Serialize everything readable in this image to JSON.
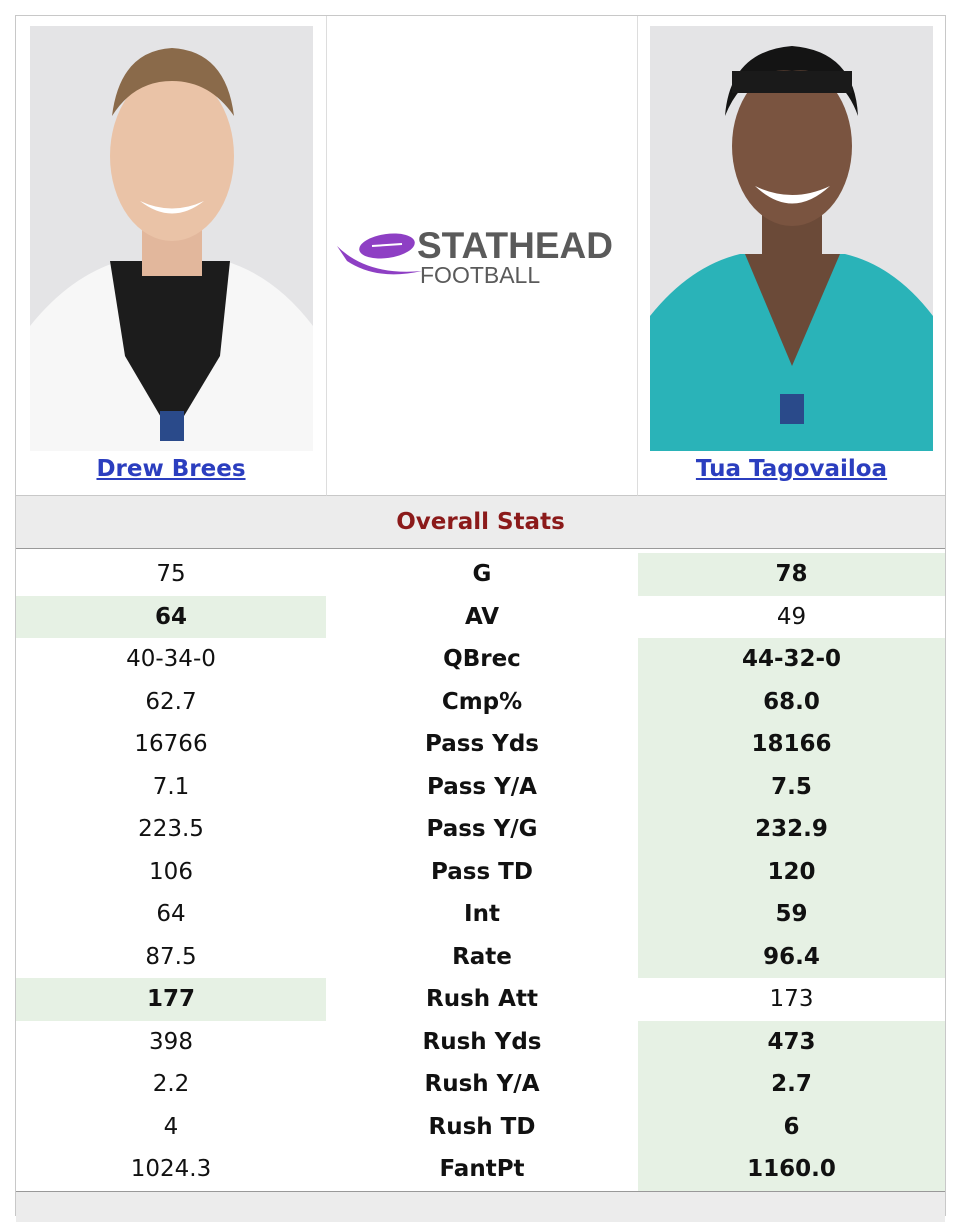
{
  "players": [
    {
      "name": "Drew Brees"
    },
    {
      "name": "Tua Tagovailoa"
    }
  ],
  "logo": {
    "line1": "STATHEAD",
    "line2": "FOOTBALL"
  },
  "section_title": "Overall Stats",
  "stats": [
    {
      "label": "G",
      "left": "75",
      "right": "78",
      "better": "right"
    },
    {
      "label": "AV",
      "left": "64",
      "right": "49",
      "better": "left"
    },
    {
      "label": "QBrec",
      "left": "40-34-0",
      "right": "44-32-0",
      "better": "right"
    },
    {
      "label": "Cmp%",
      "left": "62.7",
      "right": "68.0",
      "better": "right"
    },
    {
      "label": "Pass Yds",
      "left": "16766",
      "right": "18166",
      "better": "right"
    },
    {
      "label": "Pass Y/A",
      "left": "7.1",
      "right": "7.5",
      "better": "right"
    },
    {
      "label": "Pass Y/G",
      "left": "223.5",
      "right": "232.9",
      "better": "right"
    },
    {
      "label": "Pass TD",
      "left": "106",
      "right": "120",
      "better": "right"
    },
    {
      "label": "Int",
      "left": "64",
      "right": "59",
      "better": "right"
    },
    {
      "label": "Rate",
      "left": "87.5",
      "right": "96.4",
      "better": "right"
    },
    {
      "label": "Rush Att",
      "left": "177",
      "right": "173",
      "better": "left"
    },
    {
      "label": "Rush Yds",
      "left": "398",
      "right": "473",
      "better": "right"
    },
    {
      "label": "Rush Y/A",
      "left": "2.2",
      "right": "2.7",
      "better": "right"
    },
    {
      "label": "Rush TD",
      "left": "4",
      "right": "6",
      "better": "right"
    },
    {
      "label": "FantPt",
      "left": "1024.3",
      "right": "1160.0",
      "better": "right"
    }
  ]
}
